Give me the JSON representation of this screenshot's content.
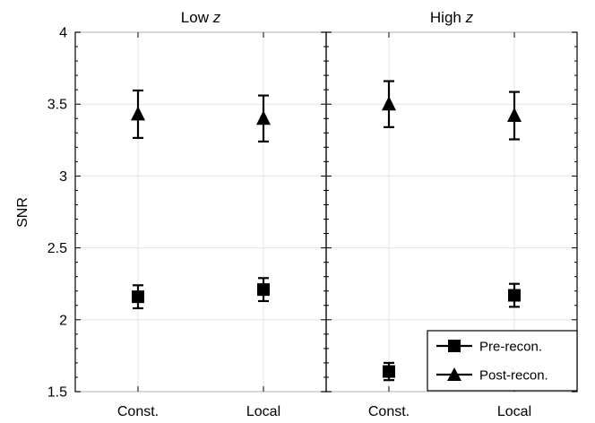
{
  "chart_data": {
    "type": "scatter",
    "ylabel": "SNR",
    "ylim": [
      1.5,
      4
    ],
    "yticks": [
      "1.5",
      "2",
      "2.5",
      "3",
      "3.5",
      "4"
    ],
    "categories": [
      "Const.",
      "Local"
    ],
    "grid": true,
    "legend_position": "bottom-right",
    "marker_color": "#000000",
    "panels": [
      {
        "title_prefix": "Low ",
        "title_var": "z",
        "series": [
          {
            "name": "Pre-recon.",
            "marker": "square",
            "values": [
              2.16,
              2.21
            ],
            "errors": [
              0.08,
              0.08
            ]
          },
          {
            "name": "Post-recon.",
            "marker": "triangle",
            "values": [
              3.43,
              3.4
            ],
            "errors": [
              0.165,
              0.16
            ]
          }
        ]
      },
      {
        "title_prefix": "High ",
        "title_var": "z",
        "series": [
          {
            "name": "Pre-recon.",
            "marker": "square",
            "values": [
              1.64,
              2.17
            ],
            "errors": [
              0.06,
              0.08
            ]
          },
          {
            "name": "Post-recon.",
            "marker": "triangle",
            "values": [
              3.5,
              3.42
            ],
            "errors": [
              0.16,
              0.165
            ]
          }
        ]
      }
    ],
    "legend": [
      {
        "label": "Pre-recon.",
        "marker": "square"
      },
      {
        "label": "Post-recon.",
        "marker": "triangle"
      }
    ]
  }
}
